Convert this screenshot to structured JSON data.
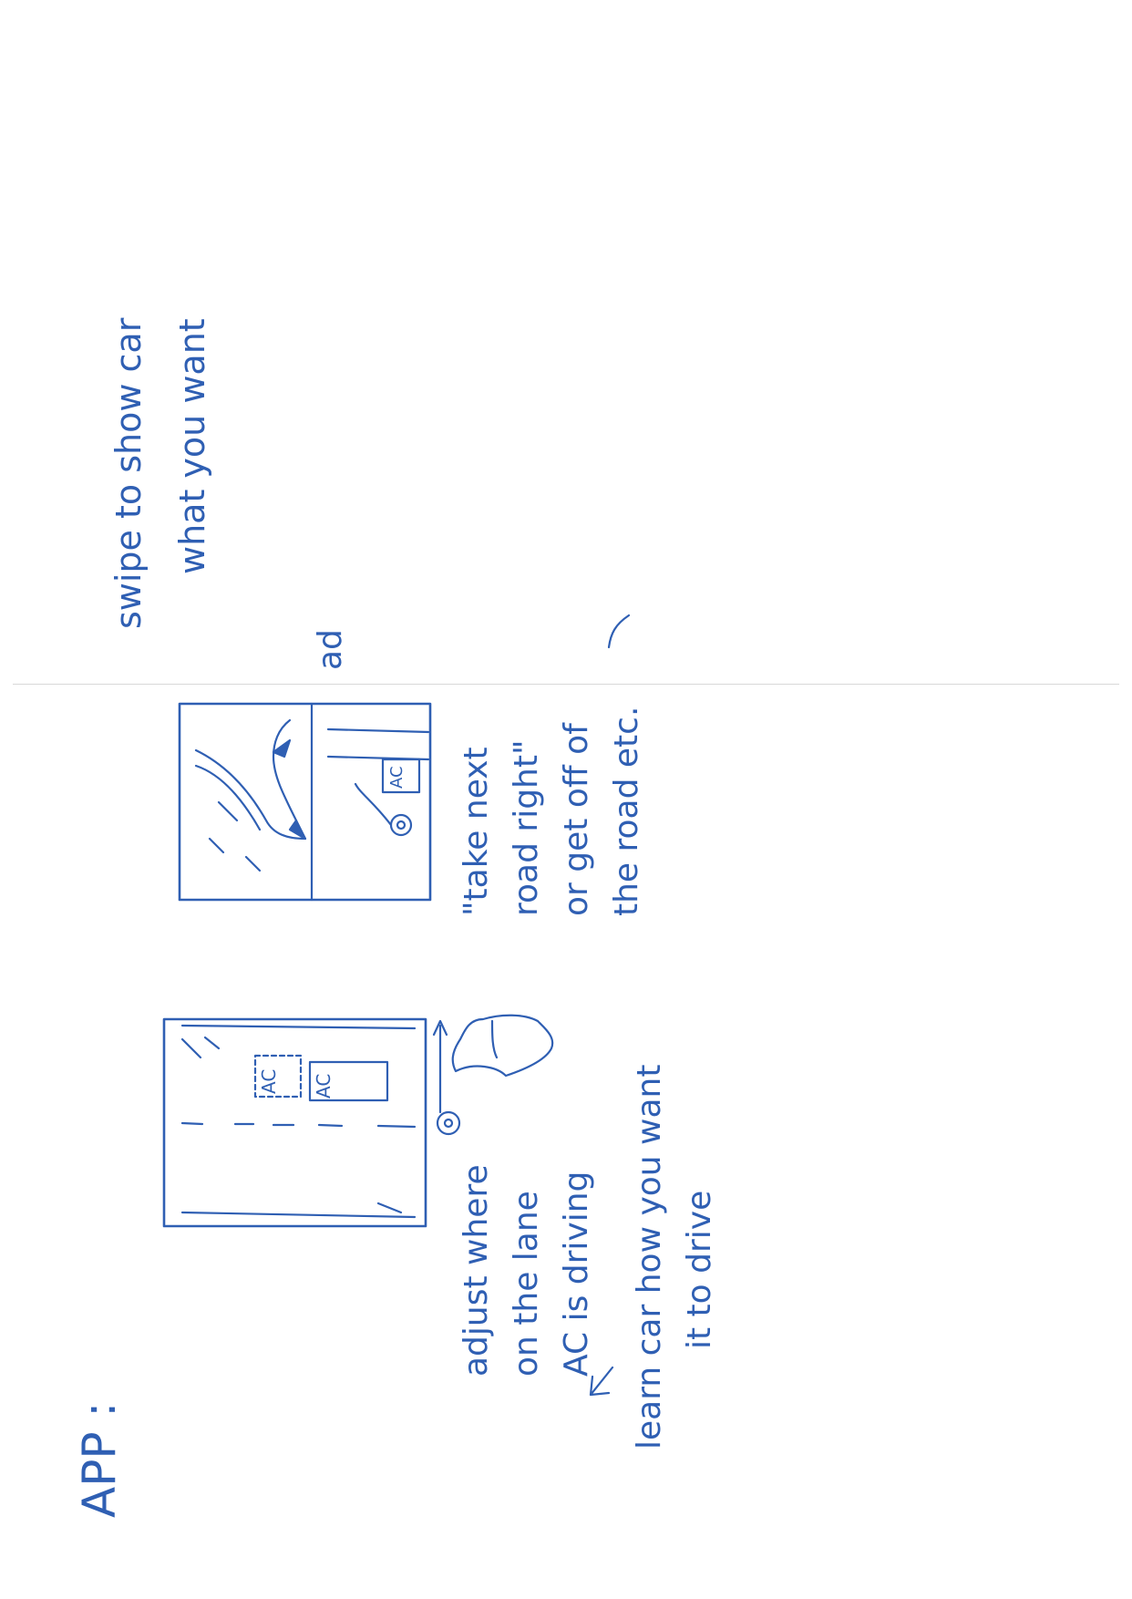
{
  "page": {
    "heading": "APP :"
  },
  "sketch_left": {
    "car_labels": [
      "AC",
      "AC"
    ],
    "caption_lines": [
      "adjust where",
      "on the lane",
      "AC is driving"
    ],
    "note_lines": [
      "learn car how you want",
      "it to drive"
    ]
  },
  "sketch_right": {
    "car_label": "AC",
    "quote_lines": [
      "\"take next",
      "road right\"",
      "or get off of",
      "the road etc."
    ],
    "fragment": "ad"
  },
  "top_note": {
    "lines": [
      "swipe to show car",
      "what you want"
    ]
  },
  "ink_color": "#2f5fb3"
}
